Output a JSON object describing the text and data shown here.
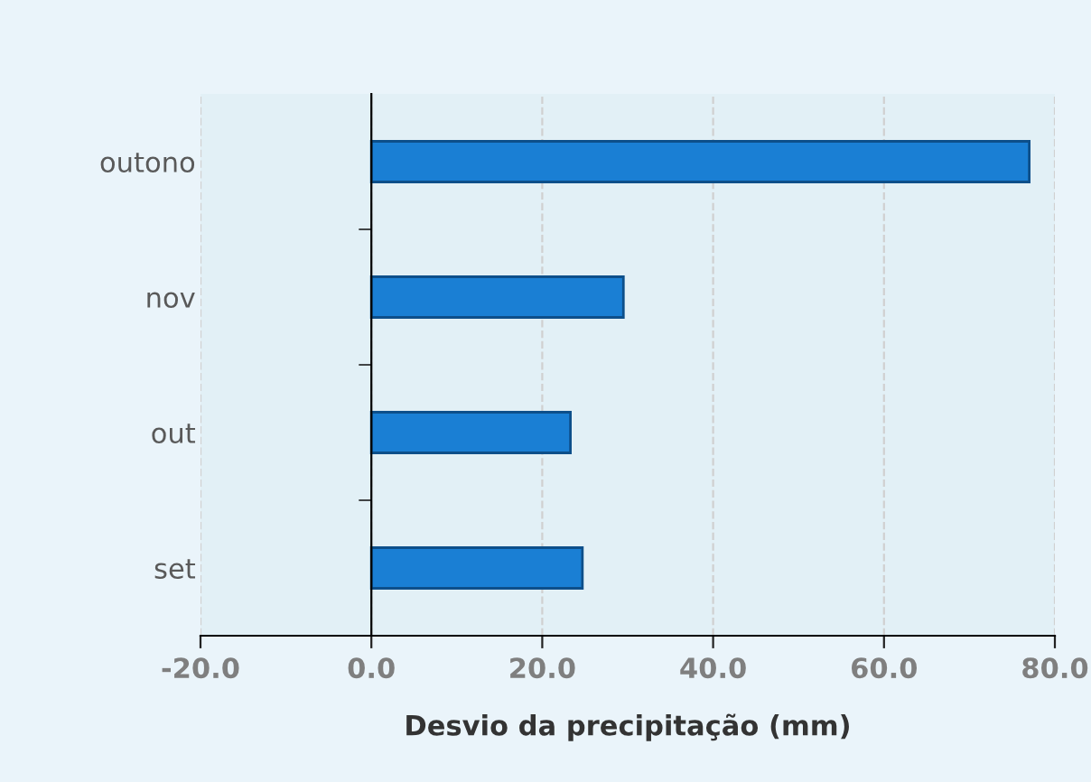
{
  "chart_data": {
    "type": "bar",
    "orientation": "horizontal",
    "xlabel": "Desvio da precipitação (mm)",
    "categories": [
      "outono",
      "nov",
      "out",
      "set"
    ],
    "values": [
      77.0,
      29.5,
      23.3,
      24.7
    ],
    "color": "#1a7fd4",
    "xlim": [
      -20,
      80
    ],
    "xticks": [
      {
        "value": -20,
        "label": "-20.0"
      },
      {
        "value": 0,
        "label": "0.0"
      },
      {
        "value": 20,
        "label": "20.0"
      },
      {
        "value": 40,
        "label": "40.0"
      },
      {
        "value": 60,
        "label": "60.0"
      },
      {
        "value": 80,
        "label": "80.0"
      }
    ],
    "grid": "x"
  }
}
